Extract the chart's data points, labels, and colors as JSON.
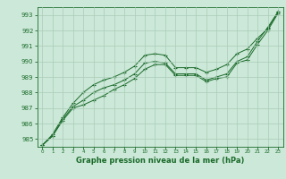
{
  "title": "Graphe pression niveau de la mer (hPa)",
  "background_color": "#cce8d8",
  "grid_color": "#aaccb8",
  "line_color": "#1a6b2a",
  "x_values": [
    0,
    1,
    2,
    3,
    4,
    5,
    6,
    7,
    8,
    9,
    10,
    11,
    12,
    13,
    14,
    15,
    16,
    17,
    18,
    19,
    20,
    21,
    22,
    23
  ],
  "line1": [
    984.6,
    985.2,
    986.2,
    987.0,
    987.2,
    987.5,
    987.8,
    988.2,
    988.5,
    988.9,
    989.5,
    989.8,
    989.8,
    989.1,
    989.1,
    989.1,
    988.7,
    988.9,
    989.0,
    989.9,
    990.1,
    991.1,
    992.0,
    993.1
  ],
  "line2": [
    984.6,
    985.2,
    986.3,
    987.1,
    987.5,
    988.0,
    988.3,
    988.5,
    988.8,
    989.2,
    989.9,
    990.0,
    989.9,
    989.2,
    989.2,
    989.2,
    988.8,
    989.0,
    989.2,
    990.0,
    990.3,
    991.3,
    992.2,
    993.2
  ],
  "line3": [
    984.6,
    985.3,
    986.4,
    987.3,
    988.0,
    988.5,
    988.8,
    989.0,
    989.3,
    989.7,
    990.4,
    990.5,
    990.4,
    989.6,
    989.6,
    989.6,
    989.3,
    989.5,
    989.8,
    990.5,
    990.8,
    991.5,
    992.1,
    993.2
  ],
  "ylim": [
    984.5,
    993.5
  ],
  "yticks": [
    985,
    986,
    987,
    988,
    989,
    990,
    991,
    992,
    993
  ],
  "xlim": [
    -0.5,
    23.5
  ],
  "xticks": [
    0,
    1,
    2,
    3,
    4,
    5,
    6,
    7,
    8,
    9,
    10,
    11,
    12,
    13,
    14,
    15,
    16,
    17,
    18,
    19,
    20,
    21,
    22,
    23
  ]
}
